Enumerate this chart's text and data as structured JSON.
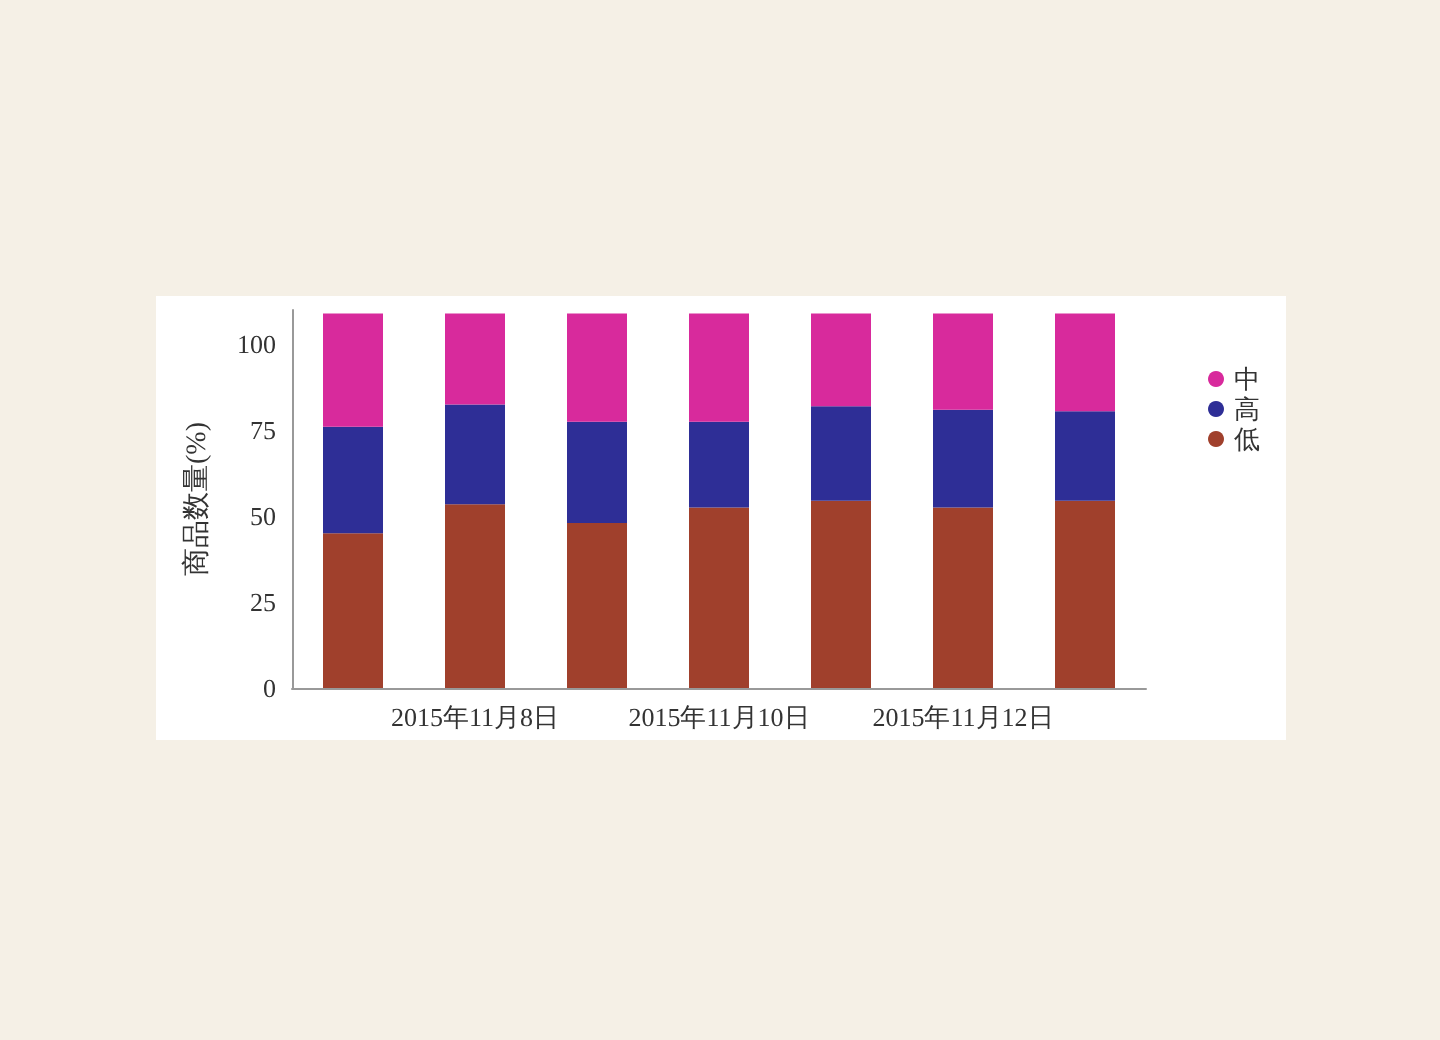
{
  "chart_data": {
    "type": "bar",
    "stacked": true,
    "ylabel": "商品数量(%)",
    "categories": [
      null,
      "2015年11月8日",
      null,
      "2015年11月10日",
      null,
      "2015年11月12日",
      null
    ],
    "series": [
      {
        "name": "低",
        "color": "#a0402c",
        "values": [
          45,
          53.5,
          48,
          52.5,
          54.5,
          52.5,
          54.5
        ]
      },
      {
        "name": "高",
        "color": "#2e2e96",
        "values": [
          31,
          29,
          29.5,
          25,
          27.5,
          28.5,
          26
        ]
      },
      {
        "name": "中",
        "color": "#d82a9c",
        "values": [
          33,
          26.5,
          31.5,
          31.5,
          27,
          28,
          28.5
        ]
      }
    ],
    "ylim": [
      0,
      110
    ],
    "yticks": [
      0,
      25,
      50,
      75,
      100
    ],
    "grid": false,
    "legend": "right"
  }
}
